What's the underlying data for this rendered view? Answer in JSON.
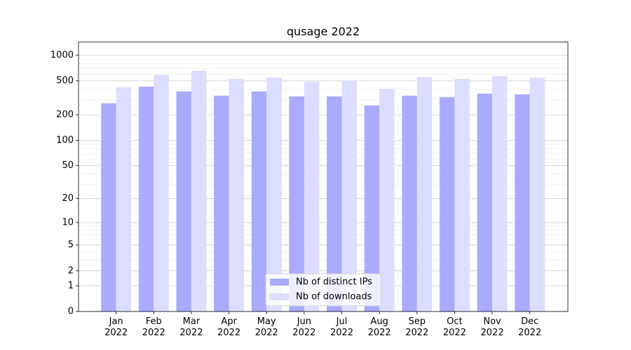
{
  "chart_data": {
    "type": "bar",
    "title": "qusage 2022",
    "categories": [
      "Jan\n2022",
      "Feb\n2022",
      "Mar\n2022",
      "Apr\n2022",
      "May\n2022",
      "Jun\n2022",
      "Jul\n2022",
      "Aug\n2022",
      "Sep\n2022",
      "Oct\n2022",
      "Nov\n2022",
      "Dec\n2022"
    ],
    "series": [
      {
        "name": "Nb of distinct IPs",
        "color": "#aaaaff",
        "values": [
          273,
          429,
          376,
          336,
          376,
          329,
          329,
          258,
          336,
          323,
          355,
          348
        ]
      },
      {
        "name": "Nb of downloads",
        "color": "#ddddff",
        "values": [
          421,
          591,
          662,
          528,
          548,
          489,
          508,
          405,
          558,
          528,
          569,
          548
        ]
      }
    ],
    "yscale": "log1p",
    "ylim": [
      0,
      1430
    ],
    "yticks": [
      0,
      1,
      2,
      5,
      10,
      20,
      50,
      100,
      200,
      500,
      1000
    ],
    "minor_yticks": [
      3,
      4,
      6,
      7,
      8,
      9,
      30,
      40,
      60,
      70,
      80,
      90,
      300,
      400,
      600,
      700,
      800,
      900
    ],
    "grid": true,
    "legend": "lower center"
  }
}
